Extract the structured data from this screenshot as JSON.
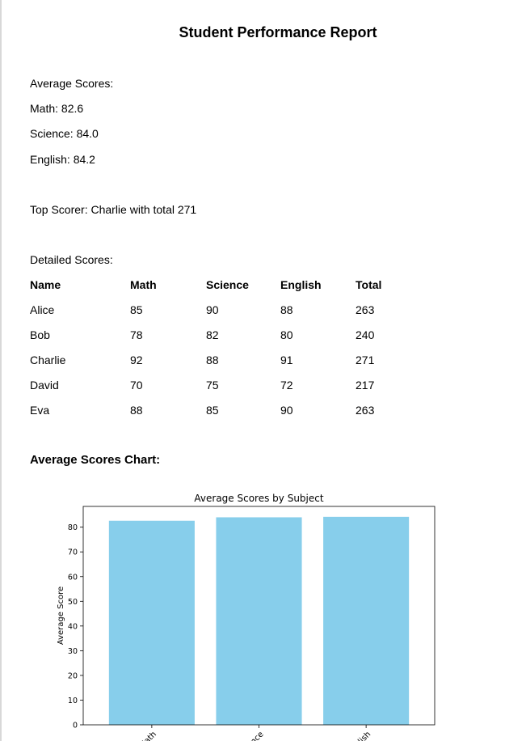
{
  "report": {
    "title": "Student Performance Report",
    "averages_heading": "Average Scores:",
    "averages": [
      {
        "text": "Math: 82.6"
      },
      {
        "text": "Science: 84.0"
      },
      {
        "text": "English: 84.2"
      }
    ],
    "top_scorer": "Top Scorer: Charlie with total 271",
    "detailed_heading": "Detailed Scores:",
    "table": {
      "headers": [
        "Name",
        "Math",
        "Science",
        "English",
        "Total"
      ],
      "rows": [
        [
          "Alice",
          "85",
          "90",
          "88",
          "263"
        ],
        [
          "Bob",
          "78",
          "82",
          "80",
          "240"
        ],
        [
          "Charlie",
          "92",
          "88",
          "91",
          "271"
        ],
        [
          "David",
          "70",
          "75",
          "72",
          "217"
        ],
        [
          "Eva",
          "88",
          "85",
          "90",
          "263"
        ]
      ]
    },
    "chart_heading": "Average Scores Chart:"
  },
  "chart_data": {
    "type": "bar",
    "title": "Average Scores by Subject",
    "categories": [
      "Math",
      "Science",
      "English"
    ],
    "values": [
      82.6,
      84.0,
      84.2
    ],
    "xlabel": "",
    "ylabel": "Average Score",
    "ylim": [
      0,
      88.41
    ],
    "yticks": [
      0,
      10,
      20,
      30,
      40,
      50,
      60,
      70,
      80
    ],
    "bar_color": "#87ceeb",
    "grid": false
  }
}
